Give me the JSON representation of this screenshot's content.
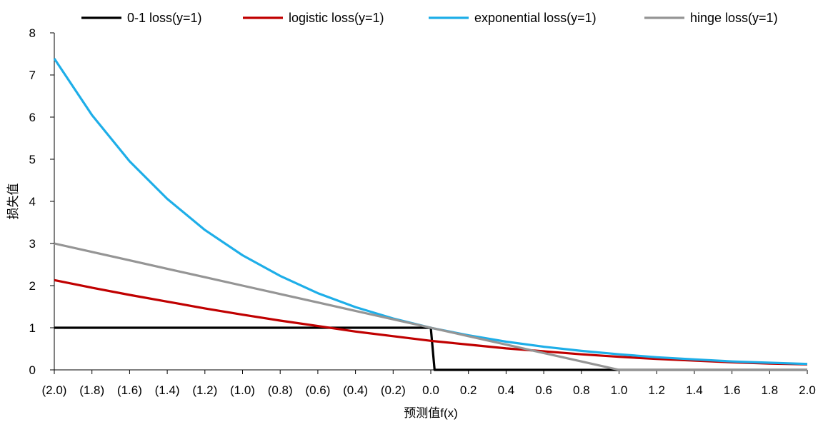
{
  "chart_data": {
    "type": "line",
    "title": "",
    "xlabel": "预测值f(x)",
    "ylabel": "损失值",
    "xlim": [
      -2.0,
      2.0
    ],
    "ylim": [
      0,
      8
    ],
    "x_tick_values": [
      -2.0,
      -1.8,
      -1.6,
      -1.4,
      -1.2,
      -1.0,
      -0.8,
      -0.6,
      -0.4,
      -0.2,
      0.0,
      0.2,
      0.4,
      0.6,
      0.8,
      1.0,
      1.2,
      1.4,
      1.6,
      1.8,
      2.0
    ],
    "x_tick_labels": [
      "(2.0)",
      "(1.8)",
      "(1.6)",
      "(1.4)",
      "(1.2)",
      "(1.0)",
      "(0.8)",
      "(0.6)",
      "(0.4)",
      "(0.2)",
      "0.0",
      "0.2",
      "0.4",
      "0.6",
      "0.8",
      "1.0",
      "1.2",
      "1.4",
      "1.6",
      "1.8",
      "2.0"
    ],
    "y_tick_values": [
      0,
      1,
      2,
      3,
      4,
      5,
      6,
      7,
      8
    ],
    "y_tick_labels": [
      "0",
      "1",
      "2",
      "3",
      "4",
      "5",
      "6",
      "7",
      "8"
    ],
    "grid": false,
    "legend_position": "top",
    "x": [
      -2.0,
      -1.8,
      -1.6,
      -1.4,
      -1.2,
      -1.0,
      -0.8,
      -0.6,
      -0.4,
      -0.2,
      0.0,
      0.02,
      0.2,
      0.4,
      0.6,
      0.8,
      1.0,
      1.2,
      1.4,
      1.6,
      1.8,
      2.0
    ],
    "series": [
      {
        "name": "0-1 loss(y=1)",
        "color": "#000000",
        "values": [
          1,
          1,
          1,
          1,
          1,
          1,
          1,
          1,
          1,
          1,
          1,
          0,
          0,
          0,
          0,
          0,
          0,
          0,
          0,
          0,
          0,
          0
        ]
      },
      {
        "name": "logistic loss(y=1)",
        "color": "#c00000",
        "values": [
          2.13,
          1.95,
          1.78,
          1.62,
          1.46,
          1.31,
          1.17,
          1.04,
          0.91,
          0.8,
          0.69,
          0.68,
          0.6,
          0.51,
          0.44,
          0.37,
          0.31,
          0.26,
          0.22,
          0.18,
          0.15,
          0.13
        ]
      },
      {
        "name": "exponential loss(y=1)",
        "color": "#1eaee8",
        "values": [
          7.39,
          6.05,
          4.95,
          4.06,
          3.32,
          2.72,
          2.23,
          1.82,
          1.49,
          1.22,
          1.0,
          0.98,
          0.82,
          0.67,
          0.55,
          0.45,
          0.37,
          0.3,
          0.25,
          0.2,
          0.17,
          0.14
        ]
      },
      {
        "name": "hinge loss(y=1)",
        "color": "#959595",
        "values": [
          3.0,
          2.8,
          2.6,
          2.4,
          2.2,
          2.0,
          1.8,
          1.6,
          1.4,
          1.2,
          1.0,
          0.98,
          0.8,
          0.6,
          0.4,
          0.2,
          0.0,
          0.0,
          0.0,
          0.0,
          0.0,
          0.0
        ]
      }
    ]
  }
}
